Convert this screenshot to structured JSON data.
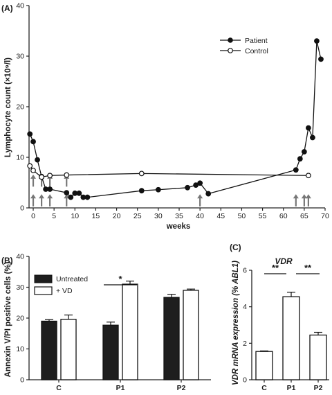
{
  "chart_data": [
    {
      "panel": "(A)",
      "type": "line",
      "xlabel": "weeks",
      "ylabel": "Lymphocyte count (×10⁹/l)",
      "xlim": [
        -1,
        70
      ],
      "ylim": [
        0,
        40
      ],
      "xticks": [
        "0",
        "5",
        "10",
        "15",
        "20",
        "25",
        "30",
        "35",
        "40",
        "45",
        "50",
        "55",
        "60",
        "65",
        "70"
      ],
      "yticks": [
        "0",
        "10",
        "20",
        "30",
        "40"
      ],
      "legend_position": "top-right",
      "series": [
        {
          "name": "Patient",
          "marker": "filled-circle",
          "x": [
            -0.8,
            0,
            1,
            2,
            3,
            4,
            8,
            9,
            10,
            11,
            12,
            13,
            26,
            30,
            37,
            39,
            40,
            42,
            63,
            64,
            65,
            66,
            67,
            68,
            69
          ],
          "y": [
            14.6,
            13.1,
            9.5,
            6.2,
            3.7,
            3.7,
            3.0,
            2.1,
            2.9,
            2.9,
            2.1,
            2.1,
            3.4,
            3.6,
            4.0,
            4.5,
            4.9,
            2.8,
            7.5,
            9.7,
            11.1,
            15.8,
            13.9,
            33.0,
            29.4
          ]
        },
        {
          "name": "Control",
          "marker": "open-circle",
          "x": [
            -0.8,
            0,
            2,
            4,
            8,
            26,
            66
          ],
          "y": [
            8.3,
            7.4,
            6.1,
            6.4,
            6.5,
            6.8,
            6.4
          ]
        }
      ],
      "upper_arrows_x": [
        0,
        2,
        4,
        8
      ],
      "lower_arrows_x": [
        0,
        2,
        4,
        8,
        40,
        63,
        65,
        66
      ]
    },
    {
      "panel": "(B)",
      "type": "bar",
      "ylabel": "Annexin V/PI positive cells (%)",
      "ylim": [
        0,
        40
      ],
      "yticks": [
        "0",
        "10",
        "20",
        "30",
        "40"
      ],
      "categories": [
        "C",
        "P1",
        "P2"
      ],
      "legend_position": "top-left",
      "series": [
        {
          "name": "Untreated",
          "color": "#1e1e1e",
          "values": [
            19.0,
            17.7,
            26.7
          ],
          "errors": [
            0.5,
            1.0,
            1.0
          ]
        },
        {
          "name": "+ VD",
          "color": "#ffffff",
          "values": [
            19.6,
            31.0,
            29.0
          ],
          "errors": [
            1.4,
            1.0,
            0.4
          ]
        }
      ],
      "significance": {
        "label": "*",
        "between": "P1"
      }
    },
    {
      "panel": "(C)",
      "type": "bar",
      "title": "VDR",
      "ylabel": "VDR mRNA expression (% ABL1)",
      "ylim": [
        0,
        6
      ],
      "yticks": [
        "0",
        "2",
        "4",
        "6"
      ],
      "categories": [
        "C",
        "P1",
        "P2"
      ],
      "values": [
        1.55,
        4.55,
        2.45
      ],
      "errors": [
        0.03,
        0.25,
        0.15
      ],
      "significance": [
        {
          "label": "**",
          "from": "C",
          "to": "P1"
        },
        {
          "label": "**",
          "from": "P1",
          "to": "P2"
        }
      ]
    }
  ]
}
